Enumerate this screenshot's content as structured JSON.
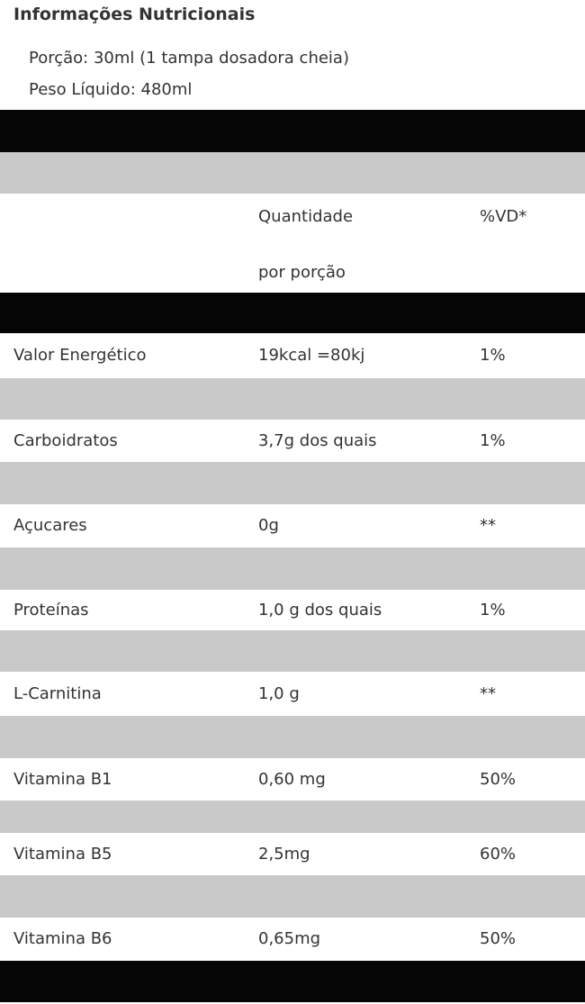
{
  "header": {
    "title": "Informações Nutricionais",
    "portion": "Porção: 30ml (1 tampa dosadora cheia)",
    "net_weight": "Peso Líquido: 480ml"
  },
  "table": {
    "header": {
      "quantity": [
        "Quantidade",
        "por porção"
      ],
      "dv": "%VD*"
    },
    "rows": [
      [
        "Valor Energético",
        "19kcal =80kj",
        "1%"
      ],
      [
        "Carboidratos",
        "3,7g dos quais",
        "1%"
      ],
      [
        "Açucares",
        "0g",
        "**"
      ],
      [
        "Proteínas",
        "1,0 g dos quais",
        "1%"
      ],
      [
        "L-Carnitina",
        "1,0 g",
        "**"
      ],
      [
        "Vitamina B1",
        "0,60 mg",
        "50%"
      ],
      [
        "Vitamina B5",
        "2,5mg",
        "60%"
      ],
      [
        "Vitamina B6",
        "0,65mg",
        "50%"
      ]
    ]
  }
}
